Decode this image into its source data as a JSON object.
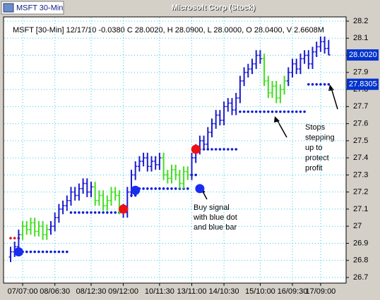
{
  "chart_data": {
    "type": "ohlc",
    "window_label": "MSFT 30-Min",
    "title": "Microsoft  Corp (Stock)",
    "info": "MSFT [30-Min] 12/17/10 -0.0380 C 28.0020, H 28.0900, L 28.0000, O 28.0400, V 2.6608M",
    "ylim": [
      26.7,
      28.2
    ],
    "yticks": [
      26.7,
      26.8,
      26.9,
      27,
      27.1,
      27.2,
      27.3,
      27.4,
      27.5,
      27.6,
      27.7,
      27.8,
      27.9,
      28,
      28.1,
      28.2
    ],
    "grid": true,
    "grid_color": "#33ccee",
    "categories": [
      null,
      null,
      null,
      "07/07:00",
      null,
      null,
      null,
      null,
      null,
      null,
      null,
      "08/06:30",
      null,
      null,
      null,
      null,
      null,
      null,
      null,
      null,
      "08/12:30",
      null,
      null,
      null,
      null,
      null,
      null,
      null,
      "09/12:00",
      null,
      null,
      null,
      null,
      null,
      null,
      null,
      null,
      "10/11:30",
      null,
      null,
      null,
      null,
      null,
      null,
      null,
      "13/11:00",
      null,
      null,
      null,
      null,
      null,
      null,
      null,
      "14/10:30",
      null,
      null,
      null,
      null,
      null,
      null,
      null,
      null,
      "15/10:00",
      null,
      null,
      null,
      null,
      null,
      null,
      null,
      "16/09:30",
      null,
      null,
      null,
      null,
      null,
      null,
      "17/09:00",
      null,
      null
    ],
    "open": [
      26.82,
      26.85,
      26.88,
      26.95,
      27.0,
      26.98,
      27.02,
      26.97,
      27.0,
      26.95,
      26.98,
      27.0,
      27.05,
      27.1,
      27.12,
      27.15,
      27.2,
      27.18,
      27.22,
      27.25,
      27.2,
      27.23,
      27.15,
      27.18,
      27.12,
      27.15,
      27.2,
      27.18,
      27.1,
      27.08,
      27.2,
      27.3,
      27.35,
      27.38,
      27.4,
      27.35,
      27.38,
      27.36,
      27.4,
      27.3,
      27.28,
      27.33,
      27.3,
      27.25,
      27.32,
      27.3,
      27.4,
      27.45,
      27.5,
      27.48,
      27.55,
      27.6,
      27.65,
      27.62,
      27.7,
      27.72,
      27.68,
      27.75,
      27.85,
      27.9,
      27.92,
      27.95,
      28.0,
      27.98,
      27.85,
      27.78,
      27.82,
      27.75,
      27.8,
      27.85,
      27.9,
      27.95,
      27.92,
      27.98,
      28.0,
      27.95,
      28.02,
      28.05,
      28.08,
      28.04
    ],
    "high": [
      26.88,
      26.91,
      26.98,
      27.03,
      27.03,
      27.05,
      27.05,
      27.03,
      27.03,
      27.01,
      27.03,
      27.08,
      27.13,
      27.15,
      27.18,
      27.23,
      27.23,
      27.25,
      27.28,
      27.28,
      27.26,
      27.26,
      27.21,
      27.21,
      27.18,
      27.23,
      27.23,
      27.21,
      27.13,
      27.23,
      27.33,
      27.38,
      27.41,
      27.43,
      27.43,
      27.41,
      27.41,
      27.43,
      27.43,
      27.33,
      27.36,
      27.36,
      27.33,
      27.35,
      27.35,
      27.43,
      27.48,
      27.53,
      27.53,
      27.58,
      27.63,
      27.68,
      27.68,
      27.73,
      27.75,
      27.75,
      27.78,
      27.88,
      27.93,
      27.95,
      27.98,
      28.03,
      28.03,
      28.01,
      27.88,
      27.85,
      27.85,
      27.83,
      27.88,
      27.93,
      27.98,
      27.98,
      28.01,
      28.03,
      28.03,
      28.05,
      28.08,
      28.11,
      28.11,
      28.09
    ],
    "low": [
      26.79,
      26.82,
      26.85,
      26.92,
      26.95,
      26.95,
      26.94,
      26.94,
      26.92,
      26.92,
      26.95,
      26.97,
      27.02,
      27.07,
      27.09,
      27.12,
      27.15,
      27.15,
      27.19,
      27.17,
      27.17,
      27.12,
      27.12,
      27.09,
      27.09,
      27.12,
      27.15,
      27.07,
      27.05,
      27.05,
      27.17,
      27.27,
      27.32,
      27.35,
      27.32,
      27.32,
      27.33,
      27.33,
      27.27,
      27.25,
      27.25,
      27.27,
      27.22,
      27.22,
      27.27,
      27.27,
      27.37,
      27.42,
      27.45,
      27.45,
      27.52,
      27.57,
      27.59,
      27.59,
      27.67,
      27.65,
      27.65,
      27.72,
      27.82,
      27.87,
      27.89,
      27.92,
      27.95,
      27.82,
      27.75,
      27.75,
      27.72,
      27.72,
      27.77,
      27.82,
      27.87,
      27.89,
      27.89,
      27.95,
      27.92,
      27.92,
      27.99,
      28.02,
      28.01,
      28.0
    ],
    "close": [
      26.85,
      26.88,
      26.95,
      27.0,
      26.98,
      27.02,
      26.97,
      27.0,
      26.95,
      26.98,
      27.0,
      27.05,
      27.1,
      27.12,
      27.15,
      27.2,
      27.18,
      27.22,
      27.25,
      27.2,
      27.23,
      27.15,
      27.18,
      27.12,
      27.15,
      27.2,
      27.18,
      27.1,
      27.08,
      27.2,
      27.3,
      27.35,
      27.38,
      27.4,
      27.35,
      27.38,
      27.36,
      27.4,
      27.3,
      27.28,
      27.33,
      27.3,
      27.25,
      27.32,
      27.3,
      27.4,
      27.45,
      27.5,
      27.48,
      27.55,
      27.6,
      27.65,
      27.62,
      27.7,
      27.72,
      27.68,
      27.75,
      27.85,
      27.9,
      27.92,
      27.95,
      28.0,
      27.98,
      27.85,
      27.78,
      27.82,
      27.75,
      27.8,
      27.85,
      27.9,
      27.95,
      27.92,
      27.98,
      28.0,
      27.95,
      28.02,
      28.05,
      28.08,
      28.04,
      28.002
    ],
    "colors": [
      "#1c1cd0",
      "#1c1cd0",
      "#1c1cd0",
      "#44dd22",
      "#44dd22",
      "#44dd22",
      "#44dd22",
      "#44dd22",
      "#44dd22",
      "#44dd22",
      "#1c1cd0",
      "#1c1cd0",
      "#1c1cd0",
      "#1c1cd0",
      "#1c1cd0",
      "#1c1cd0",
      "#1c1cd0",
      "#1c1cd0",
      "#1c1cd0",
      "#1c1cd0",
      "#1c1cd0",
      "#44dd22",
      "#44dd22",
      "#44dd22",
      "#44dd22",
      "#44dd22",
      "#44dd22",
      "#44dd22",
      "#1c1cd0",
      "#1c1cd0",
      "#1c1cd0",
      "#1c1cd0",
      "#1c1cd0",
      "#1c1cd0",
      "#1c1cd0",
      "#1c1cd0",
      "#1c1cd0",
      "#1c1cd0",
      "#44dd22",
      "#44dd22",
      "#44dd22",
      "#44dd22",
      "#44dd22",
      "#44dd22",
      "#44dd22",
      "#1c1cd0",
      "#1c1cd0",
      "#1c1cd0",
      "#1c1cd0",
      "#1c1cd0",
      "#1c1cd0",
      "#1c1cd0",
      "#1c1cd0",
      "#1c1cd0",
      "#1c1cd0",
      "#1c1cd0",
      "#1c1cd0",
      "#1c1cd0",
      "#1c1cd0",
      "#1c1cd0",
      "#1c1cd0",
      "#1c1cd0",
      "#1c1cd0",
      "#44dd22",
      "#44dd22",
      "#44dd22",
      "#44dd22",
      "#44dd22",
      "#44dd22",
      "#1c1cd0",
      "#1c1cd0",
      "#1c1cd0",
      "#1c1cd0",
      "#1c1cd0",
      "#1c1cd0",
      "#1c1cd0",
      "#1c1cd0",
      "#1c1cd0",
      "#1c1cd0",
      "#1c1cd0"
    ],
    "stop_series": [
      {
        "color": "#0a1fd8",
        "values": [
          null,
          null,
          null,
          26.85,
          26.85,
          26.85,
          26.85,
          26.85,
          26.85,
          26.85,
          26.85,
          26.85,
          26.85,
          26.85,
          26.85,
          27.08,
          27.08,
          27.08,
          27.08,
          27.08,
          27.08,
          27.08,
          27.08,
          27.08,
          27.08,
          27.08,
          27.08,
          27.08,
          null,
          null,
          27.18,
          27.18,
          27.22,
          27.22,
          27.22,
          27.22,
          27.22,
          27.22,
          27.22,
          27.22,
          27.22,
          27.22,
          27.22,
          27.22,
          27.22,
          27.3,
          27.3,
          27.45,
          27.45,
          27.45,
          27.45,
          27.45,
          27.45,
          27.45,
          27.45,
          27.45,
          27.45,
          27.67,
          27.67,
          27.67,
          27.67,
          27.67,
          27.67,
          27.67,
          27.67,
          27.67,
          27.67,
          27.67,
          27.67,
          27.67,
          27.67,
          27.67,
          27.67,
          27.67,
          27.83,
          27.83,
          27.83,
          27.83,
          27.83,
          27.83
        ]
      },
      {
        "color": "#e01010",
        "values": [
          26.93,
          26.93,
          26.93,
          null,
          null,
          null,
          null,
          null,
          null,
          null,
          null,
          null,
          null,
          null,
          null,
          null,
          null,
          null,
          null,
          null,
          null,
          null,
          null,
          null,
          null,
          null,
          null,
          null,
          null,
          null,
          null,
          null,
          null,
          null,
          null,
          null,
          null,
          null,
          null,
          null,
          null,
          null,
          null,
          null,
          null,
          null,
          null,
          null,
          null,
          null,
          null,
          null,
          null,
          null,
          null,
          null,
          null,
          null,
          null,
          null,
          null,
          null,
          null,
          null,
          null,
          null,
          null,
          null,
          null,
          null,
          null,
          null,
          null,
          null,
          null,
          null,
          null,
          null,
          null,
          null
        ]
      }
    ],
    "signals": {
      "x": [
        2,
        28,
        31,
        46,
        47
      ],
      "values": [
        26.85,
        27.1,
        27.21,
        27.45,
        27.22
      ],
      "colors": [
        "#1a2cf0",
        "#ee1111",
        "#1a2cf0",
        "#ee1111",
        "#1a2cf0"
      ]
    },
    "last_close": {
      "value": 28.002,
      "label": "28.0020"
    },
    "last_stop": {
      "value": 27.8305,
      "label": "27.8305"
    },
    "buy_note": [
      "Buy signal",
      "with blue dot",
      "and blue bar"
    ],
    "stops_note": [
      "Stops",
      "stepping",
      "up to",
      "protect",
      "profit"
    ]
  }
}
